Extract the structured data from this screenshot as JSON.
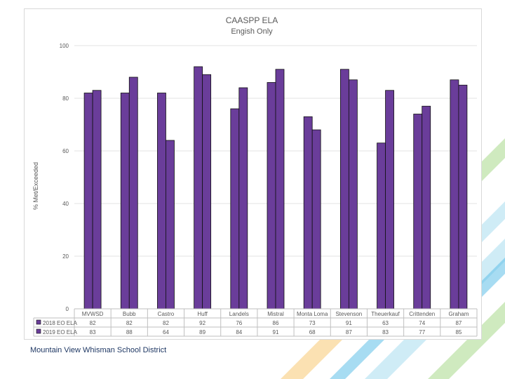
{
  "footer": {
    "text": "Mountain View Whisman School District"
  },
  "chart_data": {
    "type": "bar",
    "title": "CAASPP ELA",
    "subtitle": "Engish Only",
    "xlabel": "",
    "ylabel": "% Met/Exceeded",
    "ylim": [
      0,
      100
    ],
    "yticks": [
      "0",
      "20",
      "40",
      "60",
      "80",
      "100"
    ],
    "grid": true,
    "categories": [
      "MVWSD",
      "Bubb",
      "Castro",
      "Huff",
      "Landels",
      "Mistral",
      "Monta Loma",
      "Stevenson",
      "Theuerkauf",
      "Crittenden",
      "Graham"
    ],
    "series": [
      {
        "name": "2018 EO ELA",
        "values": [
          82,
          82,
          82,
          92,
          76,
          86,
          73,
          91,
          63,
          74,
          87
        ]
      },
      {
        "name": "2019 EO ELA",
        "values": [
          83,
          88,
          64,
          89,
          84,
          91,
          68,
          87,
          83,
          77,
          85
        ]
      }
    ],
    "colors": {
      "bar": "#6a3d9a",
      "bar_stroke": "#111111",
      "grid": "#e3e3e3",
      "text": "#595959"
    }
  },
  "decor": {
    "colors": [
      "#f7c873",
      "#a8dcef",
      "#a8d88a",
      "#5fc0e8"
    ]
  }
}
